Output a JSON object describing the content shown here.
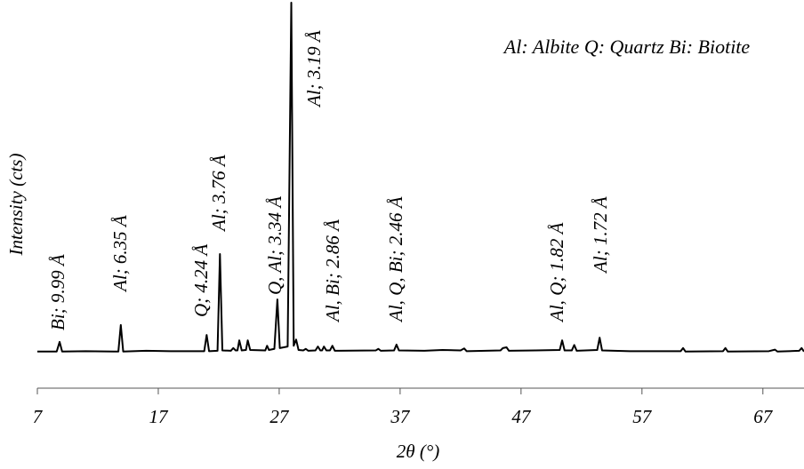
{
  "chart_data": {
    "type": "line",
    "x_label": "2θ (°)",
    "y_label": "Intensity (cts)",
    "note": "Al: Albite Q: Quartz Bi: Biotite",
    "xlim": [
      7,
      70.4
    ],
    "xticks": [
      7,
      17,
      27,
      37,
      47,
      57,
      67
    ],
    "ylim": [
      0,
      100
    ],
    "color": "#000000",
    "annotations": [
      "Bi; 9.99 Å",
      "Al; 6.35 Å",
      "Q; 4.24 Å",
      "Al; 3.76 Å",
      "Q, Al; 3.34 Å",
      "Al; 3.19 Å",
      "Al, Bi; 2.86 Å",
      "Al, Q, Bi; 2.46 Å",
      "Al, Q; 1.82 Å",
      "Al; 1.72 Å"
    ],
    "x": [
      7.0,
      8.6,
      8.84,
      9.05,
      11,
      13.7,
      13.9,
      14.1,
      16,
      18,
      20.8,
      21.0,
      21.2,
      21.9,
      22.1,
      22.3,
      23.0,
      23.2,
      23.4,
      23.55,
      23.7,
      23.9,
      24.25,
      24.4,
      24.6,
      25.85,
      26.0,
      26.15,
      26.6,
      26.85,
      27.05,
      27.7,
      28.0,
      28.2,
      28.4,
      28.6,
      29.0,
      29.2,
      29.4,
      30.0,
      30.2,
      30.4,
      30.55,
      30.7,
      30.9,
      31.2,
      31.4,
      31.6,
      35.0,
      35.2,
      35.4,
      36.5,
      36.7,
      36.9,
      39,
      40.5,
      42,
      42.3,
      42.5,
      45.3,
      45.5,
      45.8,
      46.0,
      48.2,
      50.2,
      50.4,
      50.6,
      51.2,
      51.4,
      51.6,
      53.3,
      53.5,
      53.7,
      56,
      60.2,
      60.4,
      60.6,
      63.7,
      63.9,
      64.1,
      67.5,
      68.0,
      68.2,
      70.0,
      70.2,
      70.4
    ],
    "values": [
      9.5,
      9.5,
      12,
      9.5,
      9.6,
      9.5,
      16.4,
      9.5,
      9.7,
      9.6,
      9.6,
      13.8,
      9.6,
      9.7,
      34.8,
      9.8,
      9.7,
      10.4,
      9.8,
      9.8,
      12.4,
      9.8,
      9.9,
      12.4,
      9.9,
      9.8,
      11,
      9.9,
      10.2,
      23,
      10.4,
      10.8,
      100,
      11,
      12.6,
      9.9,
      9.8,
      10.2,
      9.7,
      9.8,
      10.8,
      9.8,
      9.8,
      10.8,
      9.8,
      9.8,
      11,
      9.7,
      9.8,
      10.2,
      9.7,
      9.8,
      11.3,
      9.8,
      9.7,
      9.9,
      9.8,
      10.3,
      9.6,
      9.8,
      10.4,
      10.6,
      9.7,
      9.8,
      9.9,
      12.4,
      9.8,
      9.8,
      11.2,
      9.7,
      9.9,
      13.1,
      9.8,
      9.6,
      9.6,
      10.4,
      9.5,
      9.6,
      10.4,
      9.5,
      9.6,
      10.0,
      9.5,
      9.7,
      10.4,
      9.5
    ]
  }
}
